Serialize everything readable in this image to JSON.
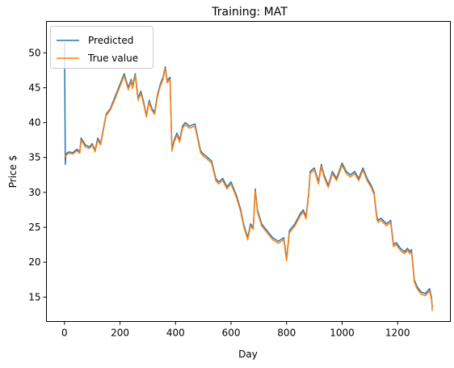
{
  "chart_data": {
    "type": "line",
    "title": "Training: MAT",
    "xlabel": "Day",
    "ylabel": "Price $",
    "xlim": [
      -65,
      1390
    ],
    "ylim": [
      11.5,
      54.5
    ],
    "xticks": [
      0,
      200,
      400,
      600,
      800,
      1000,
      1200
    ],
    "yticks": [
      15,
      20,
      25,
      30,
      35,
      40,
      45,
      50
    ],
    "grid": false,
    "legend_position": "top-left",
    "series": [
      {
        "name": "Predicted",
        "color": "#1f77b4",
        "x": [
          0,
          3,
          5,
          8,
          15,
          30,
          45,
          55,
          60,
          75,
          90,
          100,
          110,
          120,
          130,
          150,
          165,
          180,
          190,
          200,
          215,
          230,
          240,
          245,
          255,
          265,
          275,
          285,
          295,
          305,
          315,
          325,
          335,
          345,
          355,
          363,
          370,
          380,
          383,
          387,
          395,
          405,
          415,
          425,
          435,
          450,
          470,
          490,
          500,
          510,
          530,
          545,
          555,
          570,
          585,
          600,
          620,
          635,
          645,
          660,
          670,
          680,
          687,
          695,
          710,
          730,
          750,
          770,
          790,
          800,
          810,
          830,
          850,
          860,
          870,
          880,
          885,
          900,
          915,
          925,
          935,
          950,
          965,
          980,
          1000,
          1015,
          1030,
          1045,
          1060,
          1075,
          1090,
          1105,
          1115,
          1125,
          1130,
          1140,
          1160,
          1175,
          1185,
          1195,
          1210,
          1225,
          1235,
          1245,
          1250,
          1260,
          1270,
          1285,
          1300,
          1315,
          1322,
          1325
        ],
        "values": [
          51.5,
          34.0,
          35.5,
          35.6,
          35.8,
          35.7,
          36.2,
          35.8,
          37.8,
          36.8,
          36.5,
          37.0,
          36.0,
          37.8,
          37.0,
          41.2,
          42.0,
          43.5,
          44.5,
          45.5,
          47.0,
          45.0,
          46.2,
          45.2,
          47.0,
          43.5,
          44.5,
          43.0,
          41.0,
          43.2,
          42.0,
          41.5,
          44.0,
          45.5,
          46.5,
          48.0,
          46.0,
          46.5,
          42.0,
          36.2,
          37.5,
          38.5,
          37.5,
          39.5,
          40.0,
          39.5,
          39.8,
          36.0,
          35.5,
          35.2,
          34.5,
          32.0,
          31.5,
          32.0,
          30.8,
          31.5,
          29.5,
          27.5,
          25.5,
          23.5,
          25.5,
          25.0,
          30.5,
          27.5,
          25.5,
          24.5,
          23.5,
          23.0,
          23.5,
          20.5,
          24.5,
          25.5,
          27.0,
          27.5,
          26.5,
          30.0,
          33.0,
          33.5,
          31.5,
          34.0,
          32.5,
          31.0,
          33.0,
          32.0,
          34.2,
          33.0,
          32.5,
          33.0,
          32.0,
          33.5,
          32.0,
          31.0,
          30.0,
          26.5,
          26.0,
          26.3,
          25.5,
          26.0,
          22.5,
          22.8,
          22.0,
          21.5,
          22.0,
          21.5,
          21.8,
          17.5,
          16.5,
          15.7,
          15.5,
          16.2,
          15.0,
          13.5
        ]
      },
      {
        "name": "True value",
        "color": "#ff7f0e",
        "x": [
          0,
          5,
          8,
          15,
          30,
          45,
          55,
          60,
          75,
          90,
          100,
          110,
          120,
          130,
          150,
          165,
          180,
          190,
          200,
          215,
          230,
          240,
          245,
          255,
          265,
          275,
          285,
          295,
          305,
          315,
          325,
          335,
          345,
          355,
          363,
          370,
          380,
          383,
          387,
          395,
          405,
          415,
          425,
          435,
          450,
          470,
          490,
          500,
          510,
          530,
          545,
          555,
          570,
          585,
          600,
          620,
          635,
          645,
          660,
          670,
          680,
          687,
          695,
          710,
          730,
          750,
          770,
          790,
          800,
          810,
          830,
          850,
          860,
          870,
          880,
          885,
          900,
          915,
          925,
          935,
          950,
          965,
          980,
          1000,
          1015,
          1030,
          1045,
          1060,
          1075,
          1090,
          1105,
          1115,
          1125,
          1130,
          1140,
          1160,
          1175,
          1185,
          1195,
          1210,
          1225,
          1235,
          1245,
          1250,
          1260,
          1270,
          1285,
          1300,
          1315,
          1322,
          1325
        ],
        "values": [
          35.0,
          35.3,
          35.4,
          35.6,
          35.5,
          36.0,
          35.6,
          37.5,
          36.5,
          36.3,
          36.8,
          35.8,
          37.5,
          36.8,
          41.0,
          41.8,
          43.2,
          44.2,
          45.2,
          46.7,
          44.7,
          45.9,
          44.9,
          46.7,
          43.2,
          44.2,
          42.7,
          40.8,
          42.9,
          41.7,
          41.2,
          43.7,
          45.2,
          46.2,
          47.8,
          45.7,
          46.2,
          41.7,
          35.9,
          37.2,
          38.2,
          37.2,
          39.2,
          39.7,
          39.2,
          39.5,
          35.7,
          35.2,
          34.9,
          34.2,
          31.7,
          31.2,
          31.7,
          30.5,
          31.2,
          29.2,
          27.2,
          25.2,
          23.2,
          25.2,
          24.7,
          30.2,
          27.2,
          25.2,
          24.2,
          23.2,
          22.7,
          23.2,
          20.2,
          24.2,
          25.2,
          26.7,
          27.2,
          26.2,
          29.7,
          32.7,
          33.2,
          31.2,
          33.7,
          32.2,
          30.7,
          32.7,
          31.7,
          33.9,
          32.7,
          32.2,
          32.7,
          31.7,
          33.2,
          31.7,
          30.7,
          29.7,
          26.2,
          25.7,
          26.0,
          25.2,
          25.7,
          22.2,
          22.5,
          21.7,
          21.2,
          21.7,
          21.2,
          21.5,
          17.2,
          16.2,
          15.4,
          15.2,
          15.9,
          14.7,
          13.0
        ]
      }
    ]
  }
}
